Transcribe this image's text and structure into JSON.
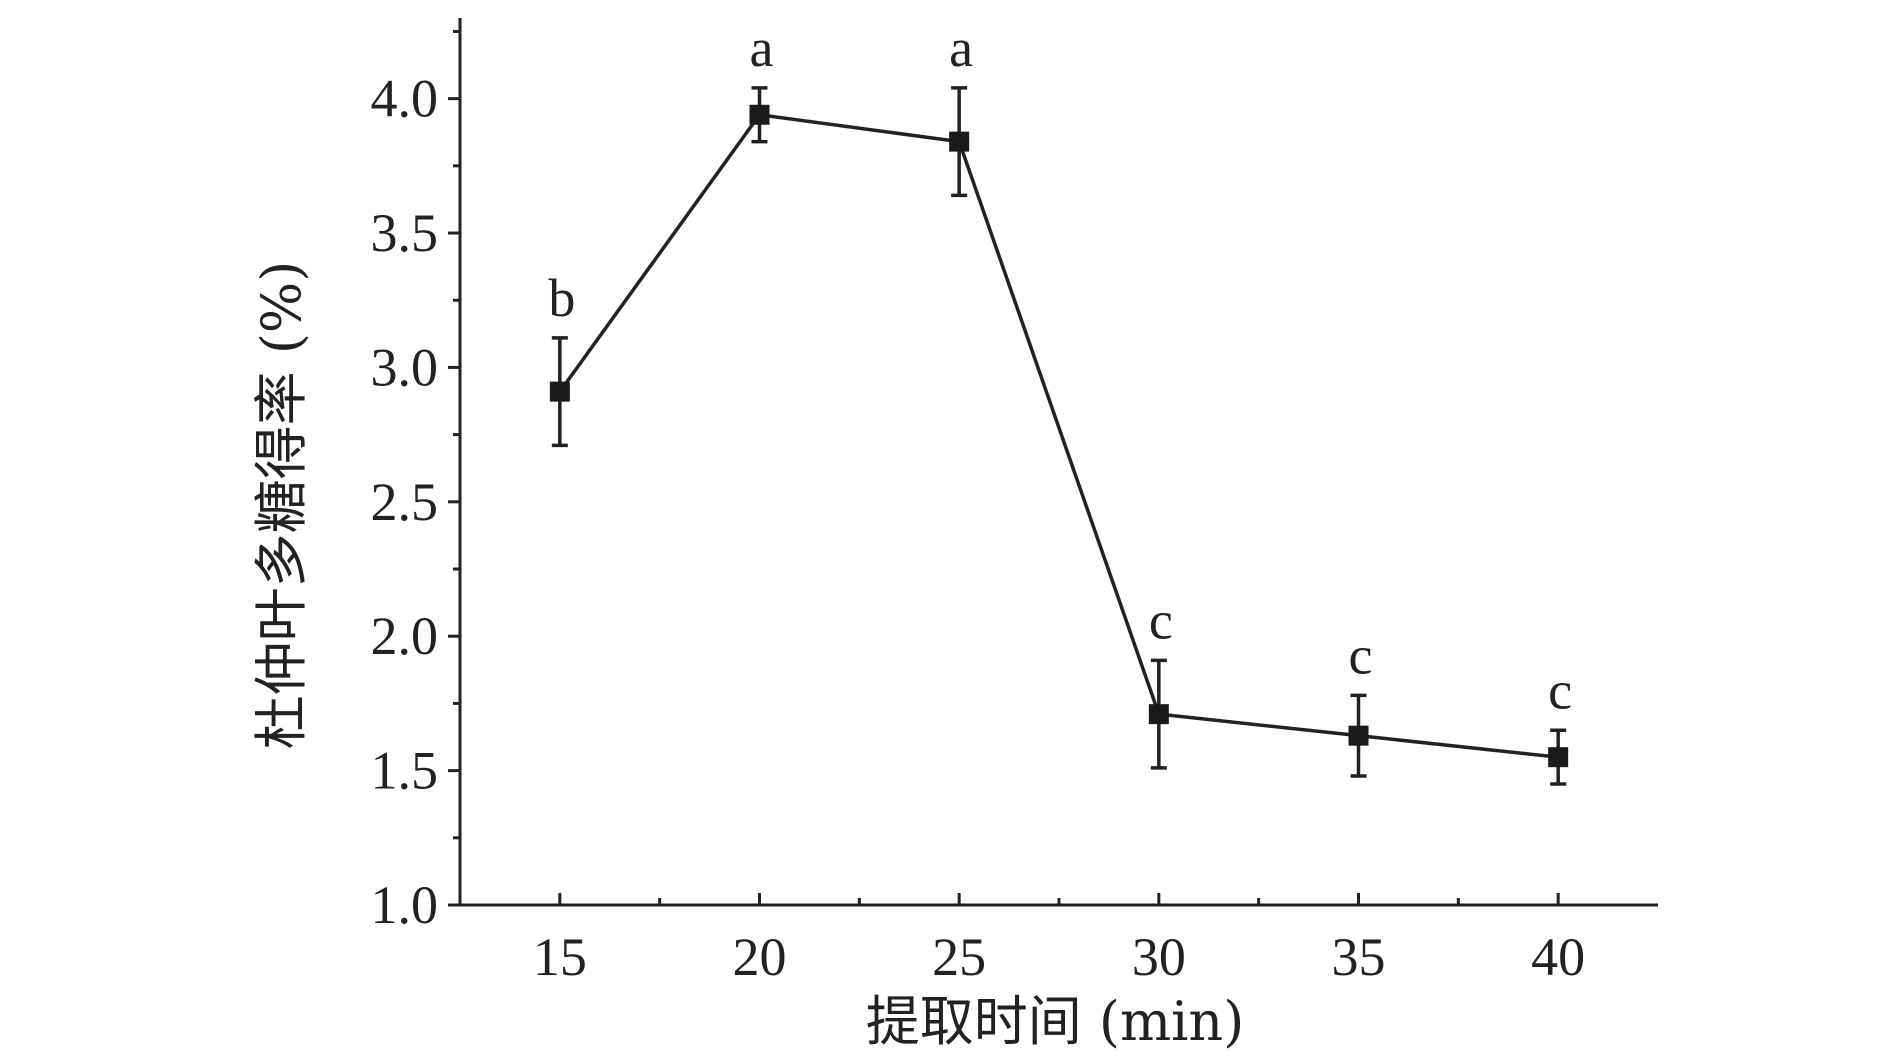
{
  "chart_data": {
    "type": "line",
    "title": "",
    "xlabel": "提取时间 (min)",
    "ylabel": "杜仲叶多糖得率 (%)",
    "x": [
      15,
      20,
      25,
      30,
      35,
      40
    ],
    "x_ticks": [
      "15",
      "20",
      "25",
      "30",
      "35",
      "40"
    ],
    "xlim": [
      12.5,
      42.5
    ],
    "ylim": [
      1.0,
      4.3
    ],
    "y_ticks": [
      "1.0",
      "1.5",
      "2.0",
      "2.5",
      "3.0",
      "3.5",
      "4.0"
    ],
    "grid": false,
    "legend": "none",
    "series": [
      {
        "values": [
          2.91,
          3.94,
          3.84,
          1.71,
          1.63,
          1.55
        ],
        "error": [
          0.2,
          0.1,
          0.2,
          0.2,
          0.15,
          0.1
        ],
        "significance": [
          "b",
          "a",
          "a",
          "c",
          "c",
          "c"
        ],
        "marker": "square",
        "color": "#1a1a1a"
      }
    ]
  }
}
